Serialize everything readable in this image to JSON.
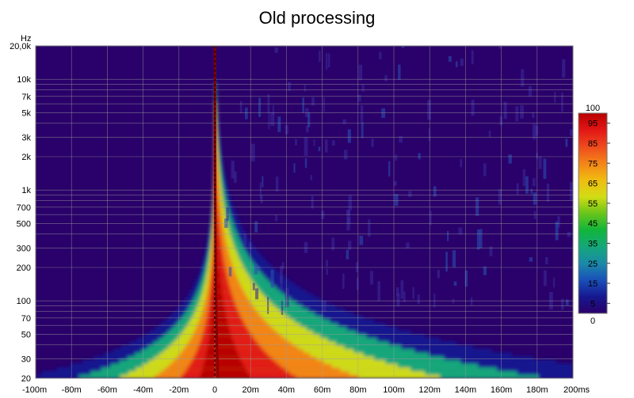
{
  "chart_data": {
    "type": "heatmap",
    "title": "Old processing",
    "y_unit_label": "Hz",
    "x_unit_label": "ms",
    "x_range": [
      -100,
      200
    ],
    "y_range": [
      20,
      20000
    ],
    "y_scale": "log",
    "x_ticks": [
      {
        "value": -100,
        "label": "-100m"
      },
      {
        "value": -80,
        "label": "-80m"
      },
      {
        "value": -60,
        "label": "-60m"
      },
      {
        "value": -40,
        "label": "-40m"
      },
      {
        "value": -20,
        "label": "-20m"
      },
      {
        "value": 0,
        "label": "0"
      },
      {
        "value": 20,
        "label": "20m"
      },
      {
        "value": 40,
        "label": "40m"
      },
      {
        "value": 60,
        "label": "60m"
      },
      {
        "value": 80,
        "label": "80m"
      },
      {
        "value": 100,
        "label": "100m"
      },
      {
        "value": 120,
        "label": "120m"
      },
      {
        "value": 140,
        "label": "140m"
      },
      {
        "value": 160,
        "label": "160m"
      },
      {
        "value": 180,
        "label": "180m"
      },
      {
        "value": 200,
        "label": "200ms"
      }
    ],
    "y_ticks": [
      {
        "value": 20000,
        "label": "20,0k"
      },
      {
        "value": 10000,
        "label": "10k"
      },
      {
        "value": 7000,
        "label": "7k"
      },
      {
        "value": 5000,
        "label": "5k"
      },
      {
        "value": 3000,
        "label": "3k"
      },
      {
        "value": 2000,
        "label": "2k"
      },
      {
        "value": 1000,
        "label": "1k"
      },
      {
        "value": 700,
        "label": "700"
      },
      {
        "value": 500,
        "label": "500"
      },
      {
        "value": 300,
        "label": "300"
      },
      {
        "value": 200,
        "label": "200"
      },
      {
        "value": 100,
        "label": "100"
      },
      {
        "value": 70,
        "label": "70"
      },
      {
        "value": 50,
        "label": "50"
      },
      {
        "value": 30,
        "label": "30"
      },
      {
        "value": 20,
        "label": "20"
      }
    ],
    "y_minor_lines": [
      20,
      30,
      40,
      50,
      60,
      70,
      80,
      90,
      100,
      200,
      300,
      400,
      500,
      600,
      700,
      800,
      900,
      1000,
      2000,
      3000,
      4000,
      5000,
      6000,
      7000,
      8000,
      9000,
      10000,
      20000
    ],
    "colorbar": {
      "min": 0,
      "max": 100,
      "min_label": "0",
      "max_label": "100",
      "tick_labels": [
        "95",
        "85",
        "75",
        "65",
        "55",
        "45",
        "35",
        "25",
        "15",
        "5"
      ],
      "tick_values": [
        95,
        85,
        75,
        65,
        55,
        45,
        35,
        25,
        15,
        5
      ],
      "colormap": [
        "#2a006a",
        "#16188f",
        "#1a50b8",
        "#1a8aa8",
        "#14a87a",
        "#12b53a",
        "#6ac51a",
        "#d2dc14",
        "#f0bc10",
        "#f48418",
        "#ee4a1e",
        "#e21616",
        "#b80000"
      ]
    },
    "grid": true,
    "colors": {
      "background": "#2a006a",
      "grid": "#a0a0a0",
      "peak": "#8b0000"
    }
  }
}
